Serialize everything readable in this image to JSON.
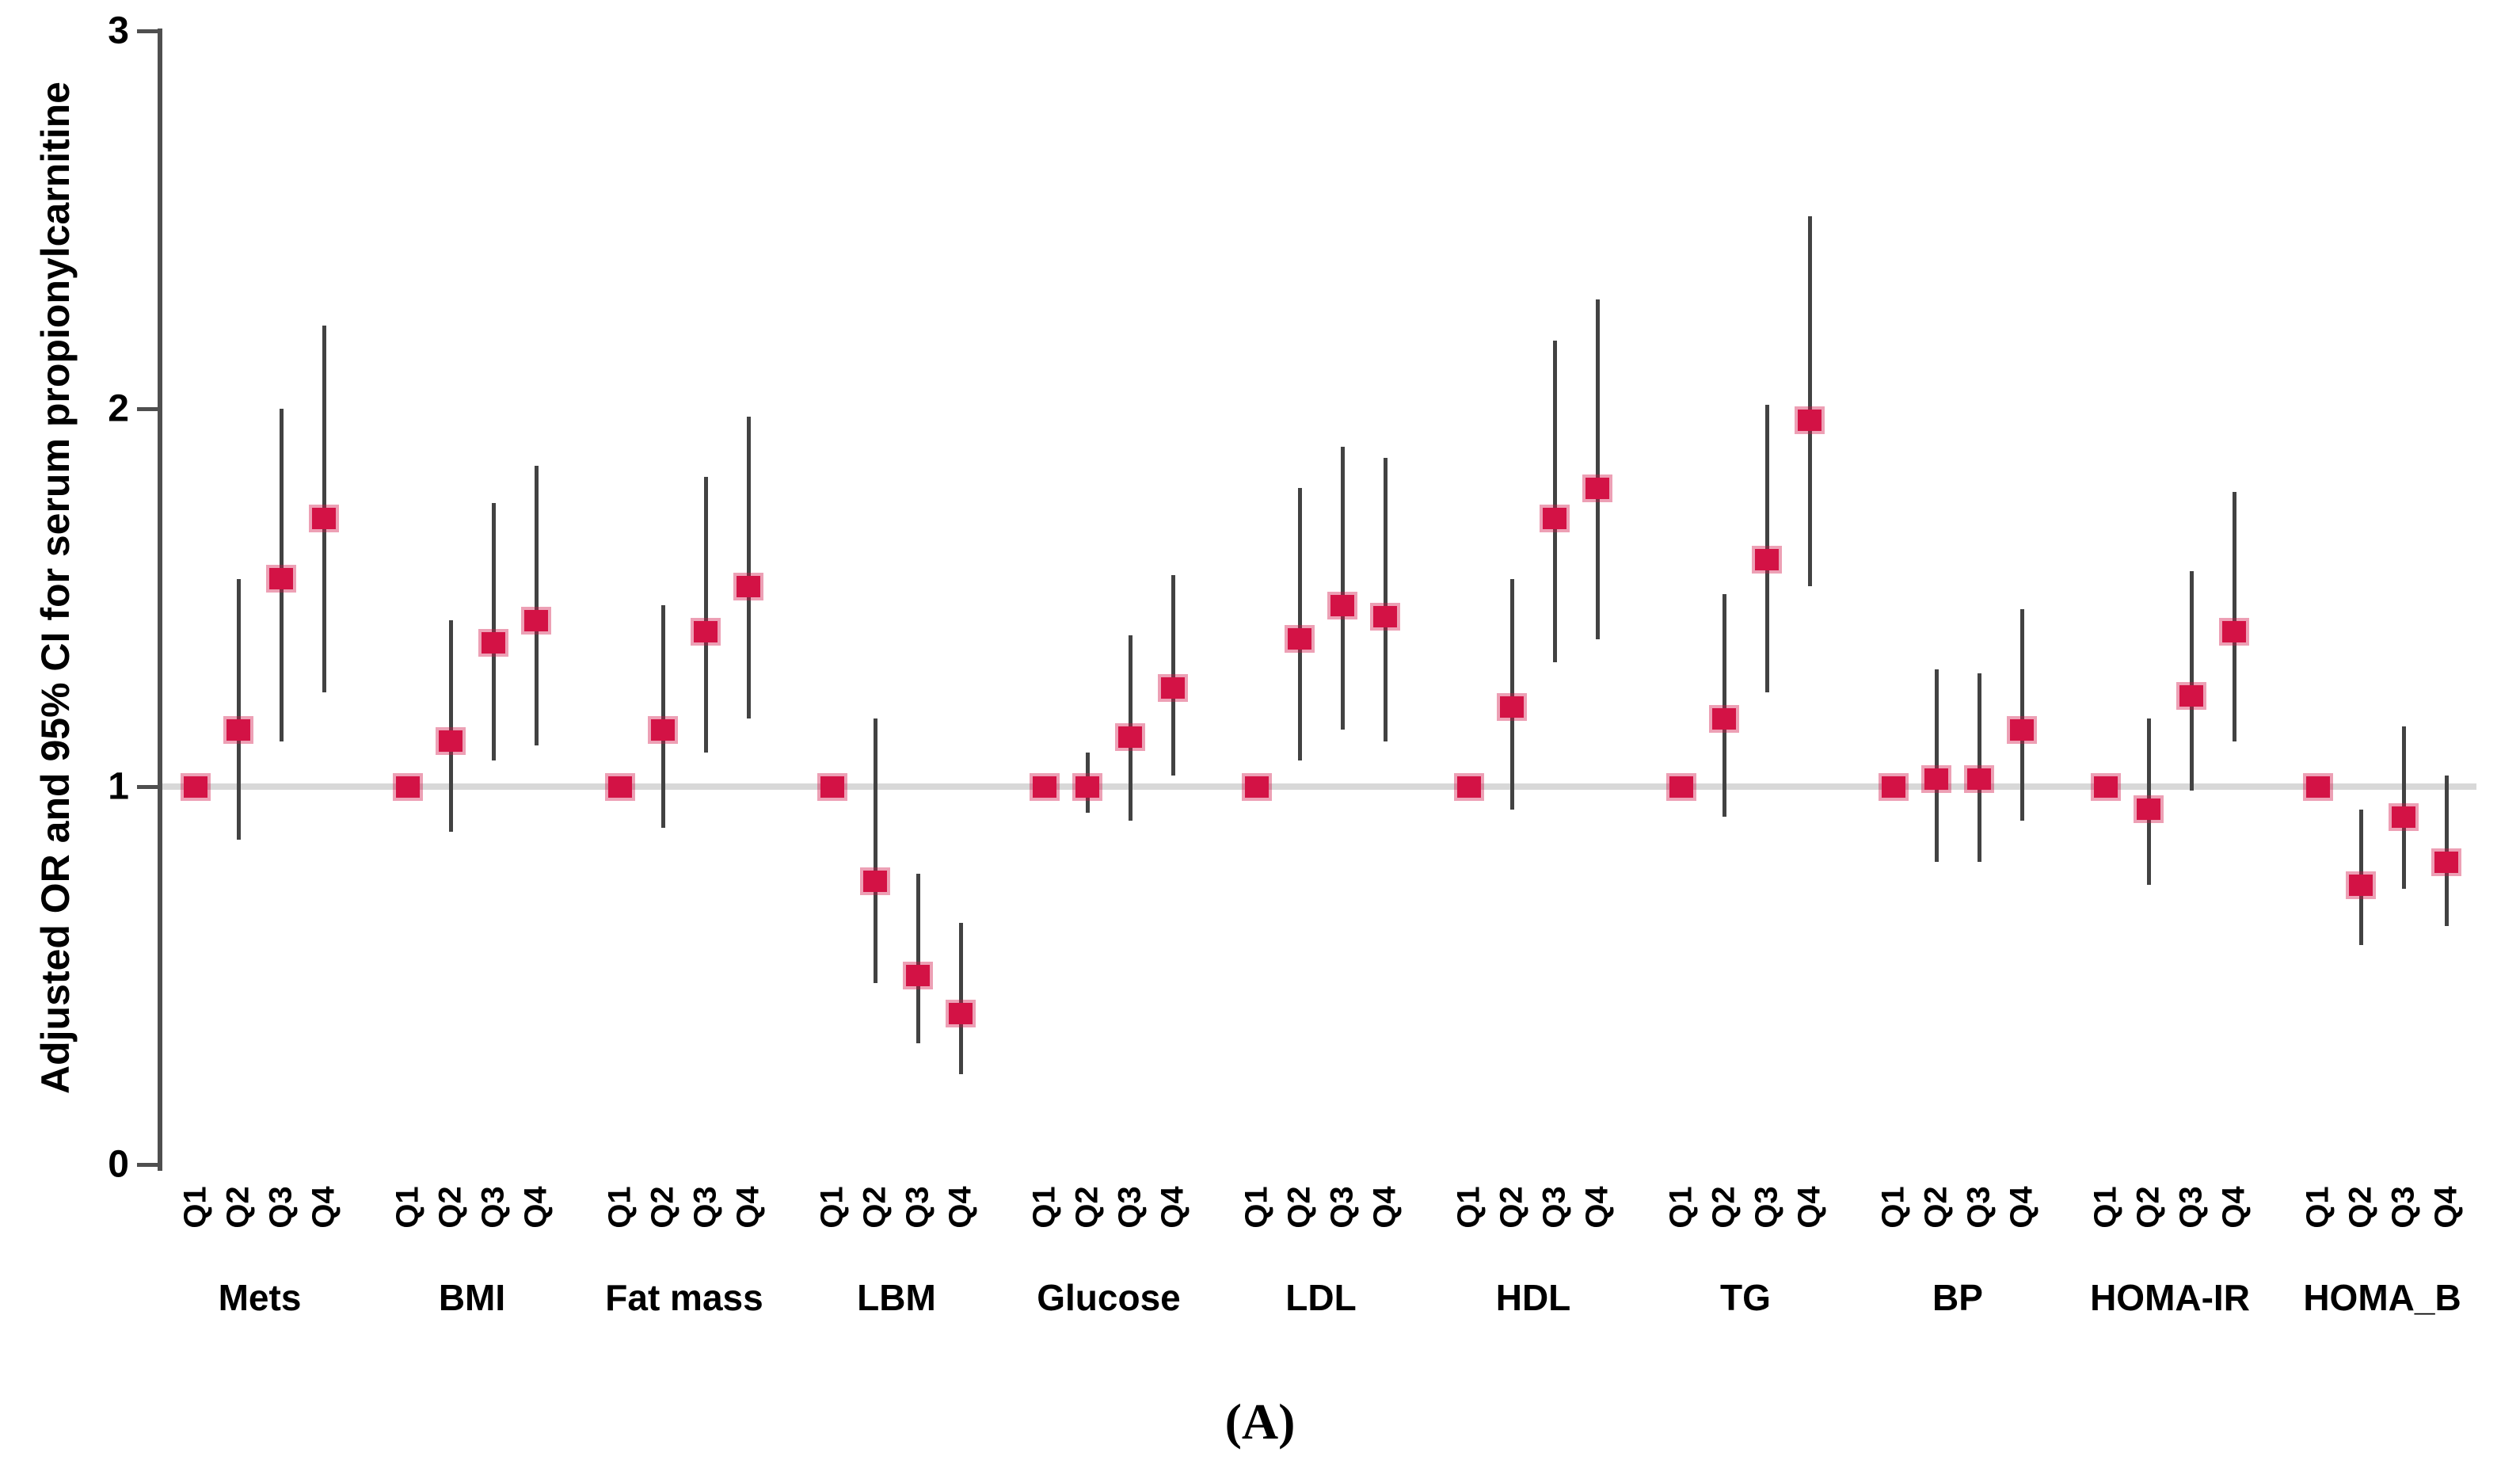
{
  "figure": {
    "caption": "(A)"
  },
  "chart_data": {
    "type": "scatter",
    "subtype": "forest-errorbar",
    "title": "",
    "xlabel": "",
    "ylabel": "Adjusted OR and 95% CI for serum propionylcarnitine",
    "ylim": [
      0,
      3
    ],
    "yticks": [
      "0",
      "1",
      "2",
      "3"
    ],
    "reference_line_y": 1,
    "grid": false,
    "legend": "none",
    "quartile_labels": [
      "Q1",
      "Q2",
      "Q3",
      "Q4"
    ],
    "colors": {
      "marker": "#d31245",
      "marker_halo": "rgba(211,18,69,0.40)",
      "ci_line": "#424242",
      "axis": "#4f4f4f",
      "reference_line": "#d8d8d8",
      "text": "#000000"
    },
    "groups": [
      {
        "name": "Mets",
        "points": [
          {
            "q": "Q1",
            "or": 1.0,
            "lo": null,
            "hi": null
          },
          {
            "q": "Q2",
            "or": 1.15,
            "lo": 0.86,
            "hi": 1.55
          },
          {
            "q": "Q3",
            "or": 1.55,
            "lo": 1.12,
            "hi": 2.0
          },
          {
            "q": "Q4",
            "or": 1.71,
            "lo": 1.25,
            "hi": 2.22
          }
        ]
      },
      {
        "name": "BMI",
        "points": [
          {
            "q": "Q1",
            "or": 1.0,
            "lo": null,
            "hi": null
          },
          {
            "q": "Q2",
            "or": 1.12,
            "lo": 0.88,
            "hi": 1.44
          },
          {
            "q": "Q3",
            "or": 1.38,
            "lo": 1.07,
            "hi": 1.75
          },
          {
            "q": "Q4",
            "or": 1.44,
            "lo": 1.11,
            "hi": 1.85
          }
        ]
      },
      {
        "name": "Fat mass",
        "points": [
          {
            "q": "Q1",
            "or": 1.0,
            "lo": null,
            "hi": null
          },
          {
            "q": "Q2",
            "or": 1.15,
            "lo": 0.89,
            "hi": 1.48
          },
          {
            "q": "Q3",
            "or": 1.41,
            "lo": 1.09,
            "hi": 1.82
          },
          {
            "q": "Q4",
            "or": 1.53,
            "lo": 1.18,
            "hi": 1.98
          }
        ]
      },
      {
        "name": "LBM",
        "points": [
          {
            "q": "Q1",
            "or": 1.0,
            "lo": null,
            "hi": null
          },
          {
            "q": "Q2",
            "or": 0.75,
            "lo": 0.48,
            "hi": 1.18
          },
          {
            "q": "Q3",
            "or": 0.5,
            "lo": 0.32,
            "hi": 0.77
          },
          {
            "q": "Q4",
            "or": 0.4,
            "lo": 0.24,
            "hi": 0.64
          }
        ]
      },
      {
        "name": "Glucose",
        "points": [
          {
            "q": "Q1",
            "or": 1.0,
            "lo": null,
            "hi": null
          },
          {
            "q": "Q2",
            "or": 1.0,
            "lo": 0.93,
            "hi": 1.09
          },
          {
            "q": "Q3",
            "or": 1.13,
            "lo": 0.91,
            "hi": 1.4
          },
          {
            "q": "Q4",
            "or": 1.26,
            "lo": 1.03,
            "hi": 1.56
          }
        ]
      },
      {
        "name": "LDL",
        "points": [
          {
            "q": "Q1",
            "or": 1.0,
            "lo": null,
            "hi": null
          },
          {
            "q": "Q2",
            "or": 1.39,
            "lo": 1.07,
            "hi": 1.79
          },
          {
            "q": "Q3",
            "or": 1.48,
            "lo": 1.15,
            "hi": 1.9
          },
          {
            "q": "Q4",
            "or": 1.45,
            "lo": 1.12,
            "hi": 1.87
          }
        ]
      },
      {
        "name": "HDL",
        "points": [
          {
            "q": "Q1",
            "or": 1.0,
            "lo": null,
            "hi": null
          },
          {
            "q": "Q2",
            "or": 1.21,
            "lo": 0.94,
            "hi": 1.55
          },
          {
            "q": "Q3",
            "or": 1.71,
            "lo": 1.33,
            "hi": 2.18
          },
          {
            "q": "Q4",
            "or": 1.79,
            "lo": 1.39,
            "hi": 2.29
          }
        ]
      },
      {
        "name": "TG",
        "points": [
          {
            "q": "Q1",
            "or": 1.0,
            "lo": null,
            "hi": null
          },
          {
            "q": "Q2",
            "or": 1.18,
            "lo": 0.92,
            "hi": 1.51
          },
          {
            "q": "Q3",
            "or": 1.6,
            "lo": 1.25,
            "hi": 2.01
          },
          {
            "q": "Q4",
            "or": 1.97,
            "lo": 1.53,
            "hi": 2.51
          }
        ]
      },
      {
        "name": "BP",
        "points": [
          {
            "q": "Q1",
            "or": 1.0,
            "lo": null,
            "hi": null
          },
          {
            "q": "Q2",
            "or": 1.02,
            "lo": 0.8,
            "hi": 1.31
          },
          {
            "q": "Q3",
            "or": 1.02,
            "lo": 0.8,
            "hi": 1.3
          },
          {
            "q": "Q4",
            "or": 1.15,
            "lo": 0.91,
            "hi": 1.47
          }
        ]
      },
      {
        "name": "HOMA-IR",
        "points": [
          {
            "q": "Q1",
            "or": 1.0,
            "lo": null,
            "hi": null
          },
          {
            "q": "Q2",
            "or": 0.94,
            "lo": 0.74,
            "hi": 1.18
          },
          {
            "q": "Q3",
            "or": 1.24,
            "lo": 0.99,
            "hi": 1.57
          },
          {
            "q": "Q4",
            "or": 1.41,
            "lo": 1.12,
            "hi": 1.78
          }
        ]
      },
      {
        "name": "HOMA_B",
        "points": [
          {
            "q": "Q1",
            "or": 1.0,
            "lo": null,
            "hi": null
          },
          {
            "q": "Q2",
            "or": 0.74,
            "lo": 0.58,
            "hi": 0.94
          },
          {
            "q": "Q3",
            "or": 0.92,
            "lo": 0.73,
            "hi": 1.16
          },
          {
            "q": "Q4",
            "or": 0.8,
            "lo": 0.63,
            "hi": 1.03
          }
        ]
      }
    ],
    "caption": "(A)"
  }
}
